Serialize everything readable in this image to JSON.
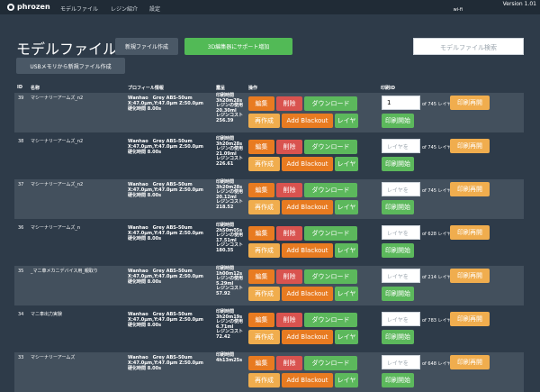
{
  "header": {
    "logo": "phrozen",
    "nav": [
      "モデルファイル",
      "レジン紹介",
      "設定"
    ],
    "version": "Version 1.01",
    "wifi": "wi-fi"
  },
  "page": {
    "title": "モデルファイル",
    "new_file_button": "新規ファイル作成",
    "support_button": "3D編集器にサポート増加",
    "usb_button": "USBメモリから新規ファイル作成",
    "search_placeholder": "モデルファイル検索"
  },
  "table": {
    "headers": [
      "ID",
      "名称",
      "プロフィール情報",
      "露呈",
      "操作",
      "印刷ID"
    ],
    "action_labels": {
      "edit": "編集",
      "delete": "削除",
      "download": "ダウンロード",
      "recreate": "再作成",
      "blackout": "Add Blackout",
      "layer": "レイヤ",
      "print_resume": "印刷再開",
      "print_start": "印刷開始",
      "layer_placeholder": "レイヤを"
    },
    "rows": [
      {
        "id": "39",
        "name": "マシーナリーアームズ_n2",
        "profile": [
          "Wanhao　Grey ABS-50um",
          "X:47.0μm,Y:47.0μm Z:50.0μm",
          "硬化時間 8.00s"
        ],
        "stats": [
          "印刷時間",
          "3h20m28s",
          "レジンの使用",
          "20.30ml",
          "レジンコスト",
          "256.39"
        ],
        "input_value": "1",
        "of_label": "of 745 レイヤ"
      },
      {
        "id": "38",
        "name": "マシーナリーアームズ_n2",
        "profile": [
          "Wanhao　Grey ABS-50um",
          "X:47.0μm,Y:47.0μm Z:50.0μm",
          "硬化時間 8.00s"
        ],
        "stats": [
          "印刷時間",
          "3h20m28s",
          "レジンの使用",
          "21.09ml",
          "レジンコスト",
          "226.61"
        ],
        "input_value": "",
        "of_label": "of 745 レイヤ"
      },
      {
        "id": "37",
        "name": "マシーナリーアームズ_n2",
        "profile": [
          "Wanhao　Grey ABS-50um",
          "X:47.0μm,Y:47.0μm Z:50.0μm",
          "硬化時間 8.00s"
        ],
        "stats": [
          "印刷時間",
          "3h20m28s",
          "レジンの使用",
          "20.12ml",
          "レジンコスト",
          "218.52"
        ],
        "input_value": "",
        "of_label": "of 745 レイヤ"
      },
      {
        "id": "36",
        "name": "マシーナリーアームズ_n",
        "profile": [
          "Wanhao　Grey ABS-50um",
          "X:47.0μm,Y:47.0μm Z:50.0μm",
          "硬化時間 8.00s"
        ],
        "stats": [
          "印刷時間",
          "2h50m05s",
          "レジンの使用",
          "17.51ml",
          "レジンコスト",
          "180.35"
        ],
        "input_value": "",
        "of_label": "of 628 レイヤ"
      },
      {
        "id": "35",
        "name": "_マニ車メカニデバイス用_親取り",
        "profile": [
          "Wanhao　Grey ABS-50um",
          "X:47.0μm,Y:47.0μm Z:50.0μm",
          "硬化時間 8.00s"
        ],
        "stats": [
          "印刷時間",
          "1h00m12s",
          "レジンの使用",
          "5.29ml",
          "レジンコスト",
          "57.92"
        ],
        "input_value": "",
        "of_label": "of 214 レイヤ"
      },
      {
        "id": "34",
        "name": "マニ車出力実験",
        "profile": [
          "Wanhao　Grey ABS-50um",
          "X:47.0μm,Y:47.0μm Z:50.0μm",
          "硬化時間 8.00s"
        ],
        "stats": [
          "印刷時間",
          "3h20m19s",
          "レジンの使用",
          "6.71ml",
          "レジンコスト",
          "72.42"
        ],
        "input_value": "",
        "of_label": "of 783 レイヤ"
      },
      {
        "id": "33",
        "name": "マシーナリーアームズ",
        "profile": [
          "Wanhao　Grey ABS-50um",
          "X:47.0μm,Y:47.0μm Z:50.0μm",
          "硬化時間 8.00s"
        ],
        "stats": [
          "印刷時間",
          "4h13m25s",
          "",
          "",
          "",
          ""
        ],
        "input_value": "",
        "of_label": "of 648 レイヤ"
      }
    ]
  }
}
